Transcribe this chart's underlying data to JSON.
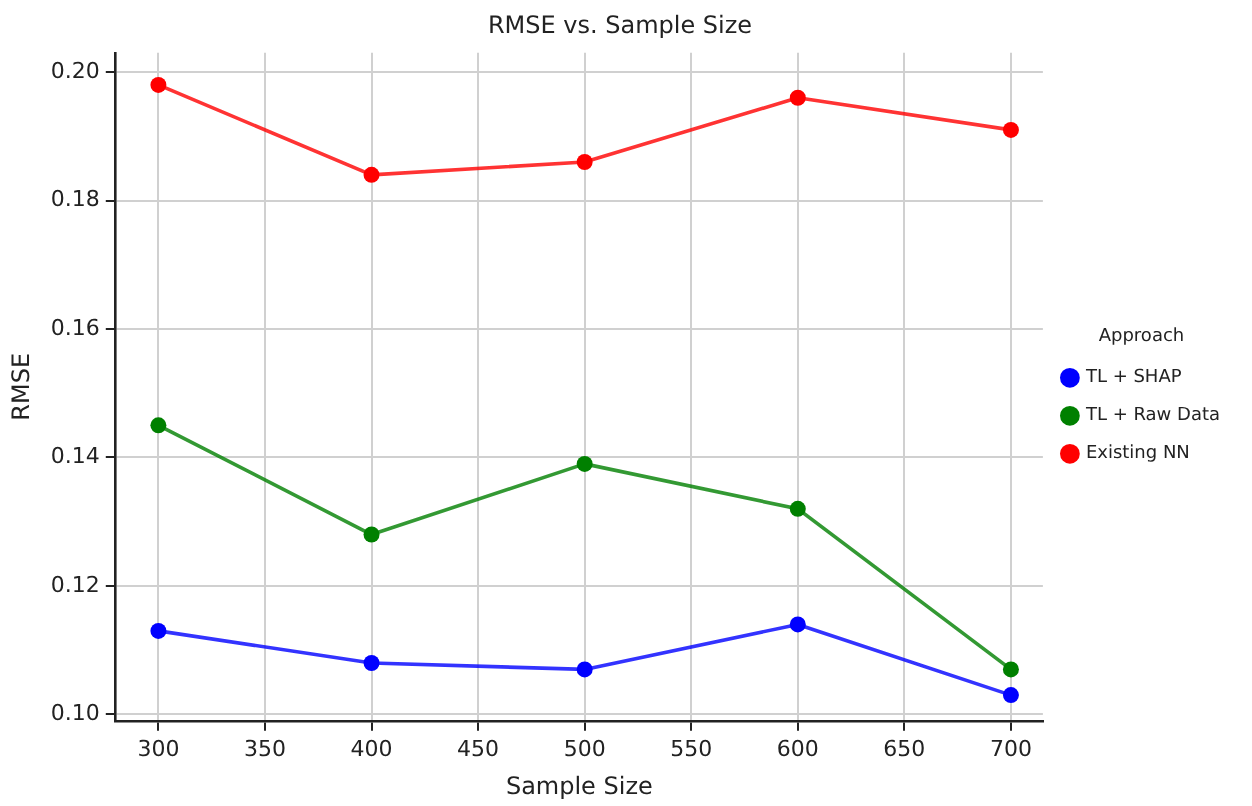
{
  "chart_data": {
    "type": "line",
    "title": "RMSE vs. Sample Size",
    "xlabel": "Sample Size",
    "ylabel": "RMSE",
    "legend_title": "Approach",
    "x": [
      300,
      400,
      500,
      600,
      700
    ],
    "series": [
      {
        "name": "TL + SHAP",
        "color": "#0000ff",
        "values": [
          0.113,
          0.108,
          0.107,
          0.114,
          0.103
        ]
      },
      {
        "name": "TL + Raw Data",
        "color": "#008000",
        "values": [
          0.145,
          0.128,
          0.139,
          0.132,
          0.107
        ]
      },
      {
        "name": "Existing NN",
        "color": "#ff0000",
        "values": [
          0.198,
          0.184,
          0.186,
          0.196,
          0.191
        ]
      }
    ],
    "xlim": [
      280,
      715
    ],
    "xticks": [
      300,
      350,
      400,
      450,
      500,
      550,
      600,
      650,
      700
    ],
    "ylim": [
      0.099,
      0.203
    ],
    "yticks": [
      {
        "value": 0.1,
        "label": "0.10"
      },
      0.12,
      0.14,
      0.16,
      0.18,
      {
        "value": 0.2,
        "label": "0.20"
      }
    ],
    "grid": true,
    "legend": "right",
    "marker": "circle",
    "line_style": "solid"
  }
}
